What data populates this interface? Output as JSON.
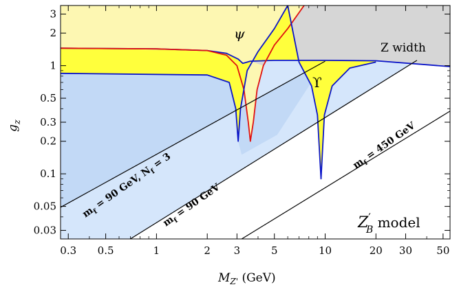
{
  "chart_data": {
    "type": "area",
    "x_scale": "log",
    "y_scale": "log",
    "xlim": [
      0.27,
      55
    ],
    "ylim": [
      0.025,
      3.6
    ],
    "xlabel_main": "M",
    "xlabel_sub": "Z'",
    "xlabel_unit": " (GeV)",
    "ylabel_main": "g",
    "ylabel_sub": "z",
    "x_ticks": [
      {
        "value": 0.3,
        "label": "0.3"
      },
      {
        "value": 0.5,
        "label": "0.5"
      },
      {
        "value": 1,
        "label": "1"
      },
      {
        "value": 2,
        "label": "2"
      },
      {
        "value": 3,
        "label": "3"
      },
      {
        "value": 5,
        "label": "5"
      },
      {
        "value": 10,
        "label": "10"
      },
      {
        "value": 20,
        "label": "20"
      },
      {
        "value": 30,
        "label": "30"
      },
      {
        "value": 50,
        "label": "50"
      }
    ],
    "y_ticks": [
      {
        "value": 0.03,
        "label": "0.03"
      },
      {
        "value": 0.05,
        "label": "0.05"
      },
      {
        "value": 0.1,
        "label": "0.1"
      },
      {
        "value": 0.2,
        "label": "0.2"
      },
      {
        "value": 0.3,
        "label": "0.3"
      },
      {
        "value": 0.5,
        "label": "0.5"
      },
      {
        "value": 1,
        "label": "1"
      },
      {
        "value": 2,
        "label": "2"
      },
      {
        "value": 3,
        "label": "3"
      }
    ],
    "colors": {
      "psi_region": "#fdf7b2",
      "upsilon_region": "#ffff3c",
      "z_width_region": "#d6d6d6",
      "light_blue": "#d5e6fb",
      "mid_blue": "#c2d9f6",
      "psi_curve": "#e01010",
      "blue_curve": "#0a14c8",
      "black_line": "#000000"
    },
    "series": [
      {
        "name": "Z width",
        "points": [
          [
            0.27,
            1.45
          ],
          [
            1.0,
            1.43
          ],
          [
            2.0,
            1.38
          ],
          [
            2.6,
            1.3
          ],
          [
            3.05,
            1.15
          ],
          [
            3.25,
            1.05
          ],
          [
            3.6,
            1.1
          ],
          [
            5.0,
            1.12
          ],
          [
            10,
            1.12
          ],
          [
            20,
            1.11
          ],
          [
            55,
            0.98
          ]
        ]
      },
      {
        "name": "ψ",
        "points": [
          [
            0.27,
            1.45
          ],
          [
            1.0,
            1.43
          ],
          [
            2.0,
            1.38
          ],
          [
            2.6,
            1.25
          ],
          [
            3.0,
            1.0
          ],
          [
            3.3,
            0.6
          ],
          [
            3.5,
            0.3
          ],
          [
            3.6,
            0.2
          ],
          [
            3.75,
            0.3
          ],
          [
            3.95,
            0.6
          ],
          [
            4.3,
            1.0
          ],
          [
            5.0,
            1.55
          ],
          [
            6.0,
            2.2
          ],
          [
            7.5,
            3.6
          ]
        ]
      },
      {
        "name": "ϒ",
        "points": [
          [
            0.27,
            0.85
          ],
          [
            2.0,
            0.82
          ],
          [
            2.7,
            0.7
          ],
          [
            2.95,
            0.4
          ],
          [
            3.05,
            0.2
          ],
          [
            3.15,
            0.4
          ],
          [
            3.45,
            0.9
          ],
          [
            4.0,
            1.35
          ],
          [
            5.0,
            2.2
          ],
          [
            6.0,
            3.6
          ],
          [
            7.0,
            1.08
          ],
          [
            8.3,
            0.65
          ],
          [
            9.0,
            0.35
          ],
          [
            9.45,
            0.09
          ],
          [
            9.9,
            0.35
          ],
          [
            11,
            0.65
          ],
          [
            14,
            0.95
          ],
          [
            20,
            1.08
          ]
        ]
      },
      {
        "name": "m_f = 90 GeV, N_f = 3",
        "points": [
          [
            0.27,
            0.049
          ],
          [
            10,
            1.1
          ]
        ]
      },
      {
        "name": "m_f = 90 GeV",
        "points": [
          [
            0.7,
            0.025
          ],
          [
            35,
            1.12
          ]
        ]
      },
      {
        "name": "m_f = 450 GeV",
        "points": [
          [
            3.2,
            0.025
          ],
          [
            55,
            0.38
          ]
        ]
      }
    ],
    "region_labels": {
      "psi": "ψ",
      "upsilon": "ϒ",
      "z_width": "Z width"
    },
    "line_labels": {
      "mf90_nf3": "m",
      "mf90_nf3_rest": " = 90 GeV,  N",
      "mf90_nf3_end": " = 3",
      "mf90": "m",
      "mf90_rest": " = 90 GeV",
      "mf450": "m",
      "mf450_rest": " = 450 GeV",
      "sub_f": "f"
    },
    "model_label": {
      "main": "Z",
      "prime": "′",
      "sub": "B",
      "rest": " model"
    }
  }
}
